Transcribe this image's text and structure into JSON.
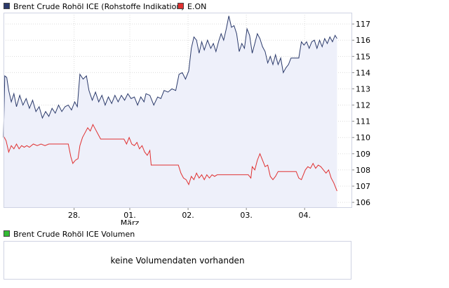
{
  "legend": {
    "brent_label": "Brent Crude Rohöl ICE (Rohstoffe Indikation)",
    "eon_label": "E.ON",
    "volume_label": "Brent Crude Rohöl ICE Volumen"
  },
  "volume_panel": {
    "message": "keine Volumendaten vorhanden"
  },
  "colors": {
    "brent_line": "#2b3a6b",
    "brent_fill": "#eef0fa",
    "eon_line": "#e03030",
    "grid": "#dcdcdc",
    "frame": "#cfd3e3",
    "volume_swatch": "#33bb33"
  },
  "chart_data": {
    "type": "line",
    "title": "",
    "xlabel": "",
    "ylabel": "",
    "ylim": [
      105.7,
      117.7
    ],
    "yticks": [
      106,
      107,
      108,
      109,
      110,
      111,
      112,
      113,
      114,
      115,
      116,
      117
    ],
    "x_tick_labels": [
      "28.",
      "01.",
      "02.",
      "03.",
      "04."
    ],
    "x_sublabel": "März",
    "x_ticks_pos": [
      10.9,
      19.5,
      28.5,
      37.5,
      46.5
    ],
    "xlim": [
      0,
      52
    ],
    "grid": true,
    "legend_position": "top",
    "series": [
      {
        "name": "Brent Crude Rohöl ICE (Rohstoffe Indikation)",
        "area": true,
        "points": [
          [
            0,
            110.0
          ],
          [
            0.2,
            113.8
          ],
          [
            0.5,
            113.7
          ],
          [
            0.8,
            112.9
          ],
          [
            1.2,
            112.2
          ],
          [
            1.6,
            112.7
          ],
          [
            2.0,
            111.9
          ],
          [
            2.5,
            112.6
          ],
          [
            3.0,
            112.0
          ],
          [
            3.5,
            112.4
          ],
          [
            4.0,
            111.8
          ],
          [
            4.5,
            112.3
          ],
          [
            5.0,
            111.6
          ],
          [
            5.5,
            111.9
          ],
          [
            6.0,
            111.2
          ],
          [
            6.5,
            111.6
          ],
          [
            7.0,
            111.3
          ],
          [
            7.5,
            111.8
          ],
          [
            8.0,
            111.5
          ],
          [
            8.5,
            112.0
          ],
          [
            9.0,
            111.6
          ],
          [
            9.5,
            111.9
          ],
          [
            10.0,
            112.0
          ],
          [
            10.5,
            111.7
          ],
          [
            11.0,
            112.2
          ],
          [
            11.4,
            111.9
          ],
          [
            11.8,
            113.9
          ],
          [
            12.3,
            113.6
          ],
          [
            12.8,
            113.8
          ],
          [
            13.2,
            112.9
          ],
          [
            13.7,
            112.3
          ],
          [
            14.2,
            112.8
          ],
          [
            14.7,
            112.2
          ],
          [
            15.2,
            112.6
          ],
          [
            15.7,
            112.0
          ],
          [
            16.2,
            112.5
          ],
          [
            16.7,
            112.1
          ],
          [
            17.2,
            112.6
          ],
          [
            17.7,
            112.2
          ],
          [
            18.2,
            112.6
          ],
          [
            18.7,
            112.3
          ],
          [
            19.2,
            112.7
          ],
          [
            19.7,
            112.4
          ],
          [
            20.2,
            112.5
          ],
          [
            20.7,
            112.0
          ],
          [
            21.2,
            112.5
          ],
          [
            21.7,
            112.2
          ],
          [
            22.0,
            112.7
          ],
          [
            22.6,
            112.6
          ],
          [
            23.2,
            112.0
          ],
          [
            23.8,
            112.5
          ],
          [
            24.3,
            112.4
          ],
          [
            24.8,
            112.9
          ],
          [
            25.4,
            112.8
          ],
          [
            26.0,
            113.0
          ],
          [
            26.6,
            112.9
          ],
          [
            27.1,
            113.9
          ],
          [
            27.6,
            114.0
          ],
          [
            28.1,
            113.6
          ],
          [
            28.6,
            114.1
          ],
          [
            29.0,
            115.5
          ],
          [
            29.4,
            116.2
          ],
          [
            29.8,
            116.0
          ],
          [
            30.2,
            115.2
          ],
          [
            30.6,
            115.9
          ],
          [
            31.0,
            115.4
          ],
          [
            31.5,
            116.0
          ],
          [
            32.0,
            115.5
          ],
          [
            32.4,
            115.8
          ],
          [
            32.8,
            115.3
          ],
          [
            33.2,
            115.9
          ],
          [
            33.6,
            116.4
          ],
          [
            34.0,
            116.0
          ],
          [
            34.4,
            116.7
          ],
          [
            34.8,
            117.5
          ],
          [
            35.2,
            116.8
          ],
          [
            35.6,
            116.9
          ],
          [
            36.0,
            116.4
          ],
          [
            36.4,
            115.3
          ],
          [
            36.8,
            115.8
          ],
          [
            37.2,
            115.5
          ],
          [
            37.6,
            116.7
          ],
          [
            38.0,
            116.3
          ],
          [
            38.4,
            115.2
          ],
          [
            38.8,
            115.8
          ],
          [
            39.2,
            116.4
          ],
          [
            39.6,
            116.1
          ],
          [
            40.0,
            115.6
          ],
          [
            40.4,
            115.3
          ],
          [
            40.8,
            114.6
          ],
          [
            41.2,
            115.0
          ],
          [
            41.6,
            114.5
          ],
          [
            42.0,
            115.1
          ],
          [
            42.4,
            114.5
          ],
          [
            42.8,
            114.9
          ],
          [
            43.2,
            114.0
          ],
          [
            43.6,
            114.3
          ],
          [
            44.0,
            114.5
          ],
          [
            44.4,
            114.9
          ],
          [
            44.8,
            114.9
          ],
          [
            45.2,
            114.9
          ],
          [
            45.6,
            114.9
          ],
          [
            46.0,
            115.9
          ],
          [
            46.4,
            115.7
          ],
          [
            46.8,
            115.9
          ],
          [
            47.2,
            115.5
          ],
          [
            47.6,
            115.9
          ],
          [
            48.0,
            116.0
          ],
          [
            48.4,
            115.5
          ],
          [
            48.8,
            116.0
          ],
          [
            49.2,
            115.6
          ],
          [
            49.6,
            116.1
          ],
          [
            50.0,
            115.8
          ],
          [
            50.4,
            116.2
          ],
          [
            50.8,
            115.9
          ],
          [
            51.2,
            116.3
          ],
          [
            51.5,
            116.1
          ]
        ]
      },
      {
        "name": "E.ON",
        "area": false,
        "points": [
          [
            0,
            110.1
          ],
          [
            0.4,
            109.8
          ],
          [
            0.8,
            109.1
          ],
          [
            1.2,
            109.5
          ],
          [
            1.6,
            109.3
          ],
          [
            2.0,
            109.6
          ],
          [
            2.4,
            109.3
          ],
          [
            2.8,
            109.5
          ],
          [
            3.2,
            109.4
          ],
          [
            3.6,
            109.5
          ],
          [
            4.0,
            109.4
          ],
          [
            4.6,
            109.6
          ],
          [
            5.2,
            109.5
          ],
          [
            5.8,
            109.6
          ],
          [
            6.4,
            109.5
          ],
          [
            7.0,
            109.6
          ],
          [
            7.6,
            109.6
          ],
          [
            8.2,
            109.6
          ],
          [
            8.8,
            109.6
          ],
          [
            9.4,
            109.6
          ],
          [
            10.0,
            109.6
          ],
          [
            10.4,
            108.8
          ],
          [
            10.7,
            108.4
          ],
          [
            11.1,
            108.6
          ],
          [
            11.5,
            108.7
          ],
          [
            11.8,
            109.5
          ],
          [
            12.2,
            110.0
          ],
          [
            12.6,
            110.3
          ],
          [
            13.0,
            110.6
          ],
          [
            13.4,
            110.4
          ],
          [
            13.8,
            110.8
          ],
          [
            14.2,
            110.5
          ],
          [
            14.6,
            110.2
          ],
          [
            15.0,
            109.9
          ],
          [
            15.6,
            109.9
          ],
          [
            16.2,
            109.9
          ],
          [
            16.8,
            109.9
          ],
          [
            17.4,
            109.9
          ],
          [
            18.0,
            109.9
          ],
          [
            18.6,
            109.9
          ],
          [
            19.0,
            109.6
          ],
          [
            19.4,
            110.0
          ],
          [
            19.8,
            109.6
          ],
          [
            20.2,
            109.5
          ],
          [
            20.6,
            109.7
          ],
          [
            21.0,
            109.3
          ],
          [
            21.4,
            109.5
          ],
          [
            21.8,
            109.1
          ],
          [
            22.2,
            108.9
          ],
          [
            22.6,
            109.2
          ],
          [
            22.8,
            108.3
          ],
          [
            23.4,
            108.3
          ],
          [
            24.0,
            108.3
          ],
          [
            24.6,
            108.3
          ],
          [
            25.2,
            108.3
          ],
          [
            25.8,
            108.3
          ],
          [
            26.4,
            108.3
          ],
          [
            27.0,
            108.3
          ],
          [
            27.4,
            107.8
          ],
          [
            27.8,
            107.5
          ],
          [
            28.2,
            107.4
          ],
          [
            28.6,
            107.1
          ],
          [
            29.0,
            107.6
          ],
          [
            29.4,
            107.4
          ],
          [
            29.8,
            107.8
          ],
          [
            30.2,
            107.5
          ],
          [
            30.6,
            107.7
          ],
          [
            31.0,
            107.4
          ],
          [
            31.4,
            107.7
          ],
          [
            31.8,
            107.5
          ],
          [
            32.2,
            107.7
          ],
          [
            32.6,
            107.6
          ],
          [
            33.0,
            107.7
          ],
          [
            33.6,
            107.7
          ],
          [
            34.2,
            107.7
          ],
          [
            34.8,
            107.7
          ],
          [
            35.4,
            107.7
          ],
          [
            36.0,
            107.7
          ],
          [
            36.6,
            107.7
          ],
          [
            37.2,
            107.7
          ],
          [
            37.8,
            107.7
          ],
          [
            38.2,
            107.5
          ],
          [
            38.4,
            108.2
          ],
          [
            38.8,
            108.0
          ],
          [
            39.2,
            108.6
          ],
          [
            39.6,
            109.0
          ],
          [
            40.0,
            108.6
          ],
          [
            40.4,
            108.2
          ],
          [
            40.8,
            108.3
          ],
          [
            41.2,
            107.6
          ],
          [
            41.6,
            107.4
          ],
          [
            42.0,
            107.6
          ],
          [
            42.4,
            107.9
          ],
          [
            42.8,
            107.9
          ],
          [
            43.4,
            107.9
          ],
          [
            44.0,
            107.9
          ],
          [
            44.6,
            107.9
          ],
          [
            45.2,
            107.9
          ],
          [
            45.6,
            107.5
          ],
          [
            46.0,
            107.4
          ],
          [
            46.3,
            107.7
          ],
          [
            46.6,
            108.0
          ],
          [
            47.0,
            108.2
          ],
          [
            47.4,
            108.1
          ],
          [
            47.8,
            108.4
          ],
          [
            48.2,
            108.1
          ],
          [
            48.6,
            108.3
          ],
          [
            49.0,
            108.2
          ],
          [
            49.4,
            108.0
          ],
          [
            49.8,
            107.8
          ],
          [
            50.2,
            108.0
          ],
          [
            50.6,
            107.5
          ],
          [
            51.0,
            107.2
          ],
          [
            51.5,
            106.7
          ]
        ]
      }
    ]
  }
}
